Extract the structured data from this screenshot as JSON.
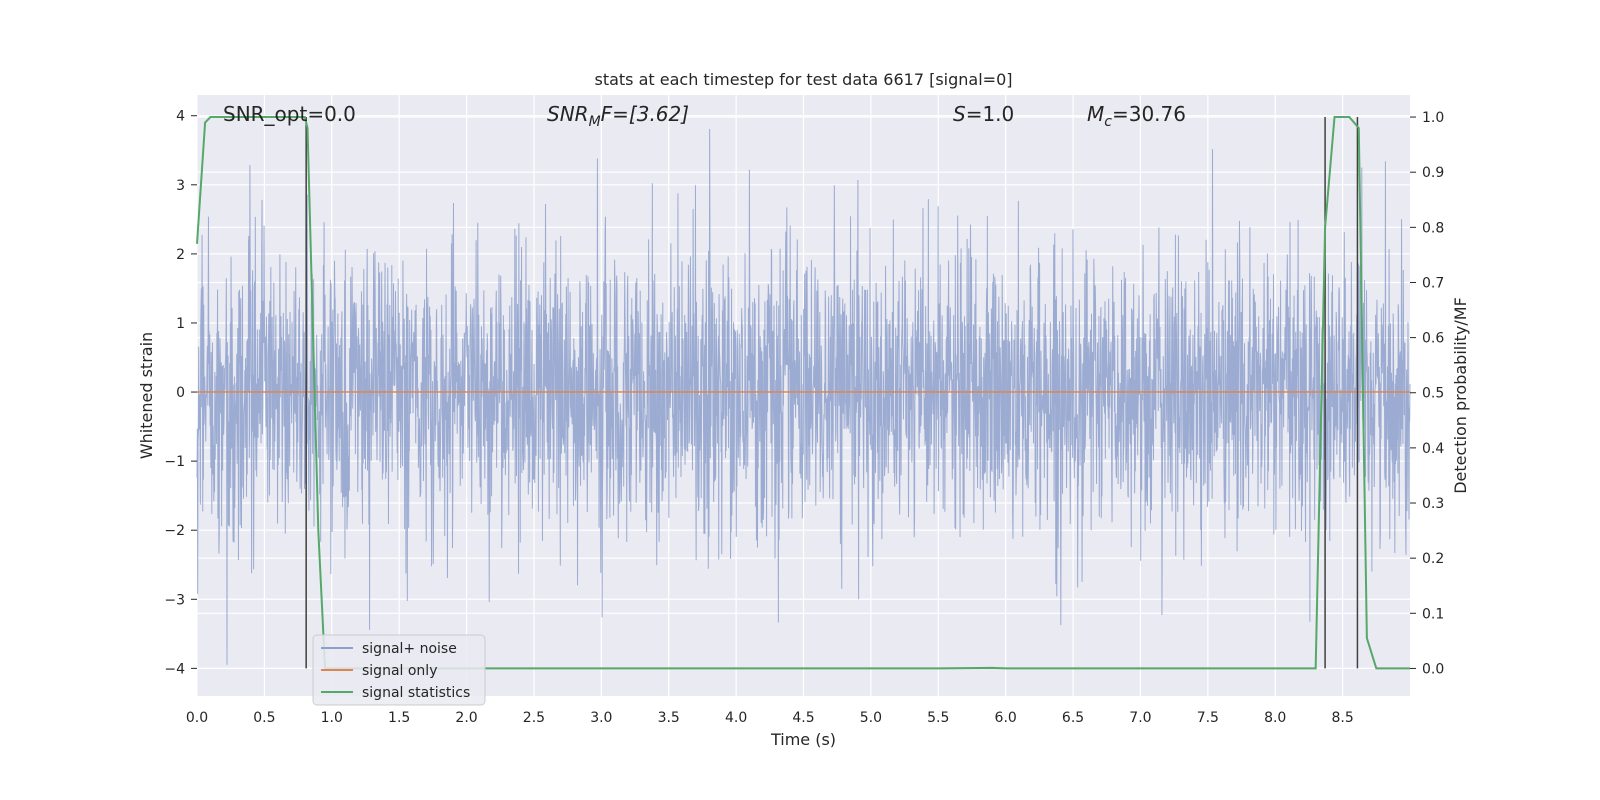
{
  "chart_data": {
    "type": "line",
    "title": "stats at each timestep for test data 6617 [signal=0]",
    "xlabel": "Time (s)",
    "ylabel_left": "Whitened strain",
    "ylabel_right": "Detection probability/MF",
    "xlim": [
      0.0,
      9.0
    ],
    "ylim_left": [
      -4.4,
      4.3
    ],
    "ylim_right": [
      -0.05,
      1.04
    ],
    "x_ticks": [
      "0.0",
      "0.5",
      "1.0",
      "1.5",
      "2.0",
      "2.5",
      "3.0",
      "3.5",
      "4.0",
      "4.5",
      "5.0",
      "5.5",
      "6.0",
      "6.5",
      "7.0",
      "7.5",
      "8.0",
      "8.5"
    ],
    "y_left_ticks": [
      "4",
      "3",
      "2",
      "1",
      "0",
      "−1",
      "−2",
      "−3",
      "−4"
    ],
    "y_right_ticks": [
      "1.0",
      "0.9",
      "0.8",
      "0.7",
      "0.6",
      "0.5",
      "0.4",
      "0.3",
      "0.2",
      "0.1",
      "0.0"
    ],
    "grid": true,
    "legend_position": "lower-left",
    "annotations": {
      "snr_opt": "SNR_opt=0.0",
      "snr_mf_sym": "SNR",
      "snr_mf_sub": "M",
      "snr_mf_rest": "F=[3.62]",
      "s_sym": "S",
      "s_rest": "=1.0",
      "mc_sym": "M",
      "mc_sub": "c",
      "mc_rest": "=30.76"
    },
    "series": [
      {
        "name": "signal+ noise",
        "color": "#8da0cb",
        "axis": "left",
        "description_values": "noise approximately N(0,1), range about -3.9 to 3.9"
      },
      {
        "name": "signal only",
        "color": "#dd8452",
        "axis": "left",
        "values_constant": 0.0
      },
      {
        "name": "signal statistics",
        "color": "#55a868",
        "axis": "right",
        "x": [
          0.0,
          0.06,
          0.1,
          0.2,
          0.5,
          0.8,
          0.82,
          0.9,
          0.95,
          5.5,
          5.9,
          6.0,
          8.3,
          8.37,
          8.44,
          8.55,
          8.62,
          8.68,
          8.75,
          9.0
        ],
        "y": [
          0.77,
          0.99,
          1.0,
          1.0,
          1.0,
          1.0,
          0.98,
          0.25,
          0.0,
          0.0,
          0.001,
          0.0,
          0.0,
          0.8,
          1.0,
          1.0,
          0.98,
          0.055,
          0.0,
          0.0
        ]
      }
    ],
    "markers": [
      {
        "x": 0.81,
        "color": "#404040"
      },
      {
        "x": 8.37,
        "color": "#404040"
      },
      {
        "x": 8.61,
        "color": "#404040"
      }
    ]
  },
  "colors": {
    "plot_bg": "#eaeaf2",
    "grid": "#ffffff",
    "noise": "#8da0cb",
    "signal": "#dd8452",
    "stats": "#55a868",
    "marker": "#404040"
  }
}
